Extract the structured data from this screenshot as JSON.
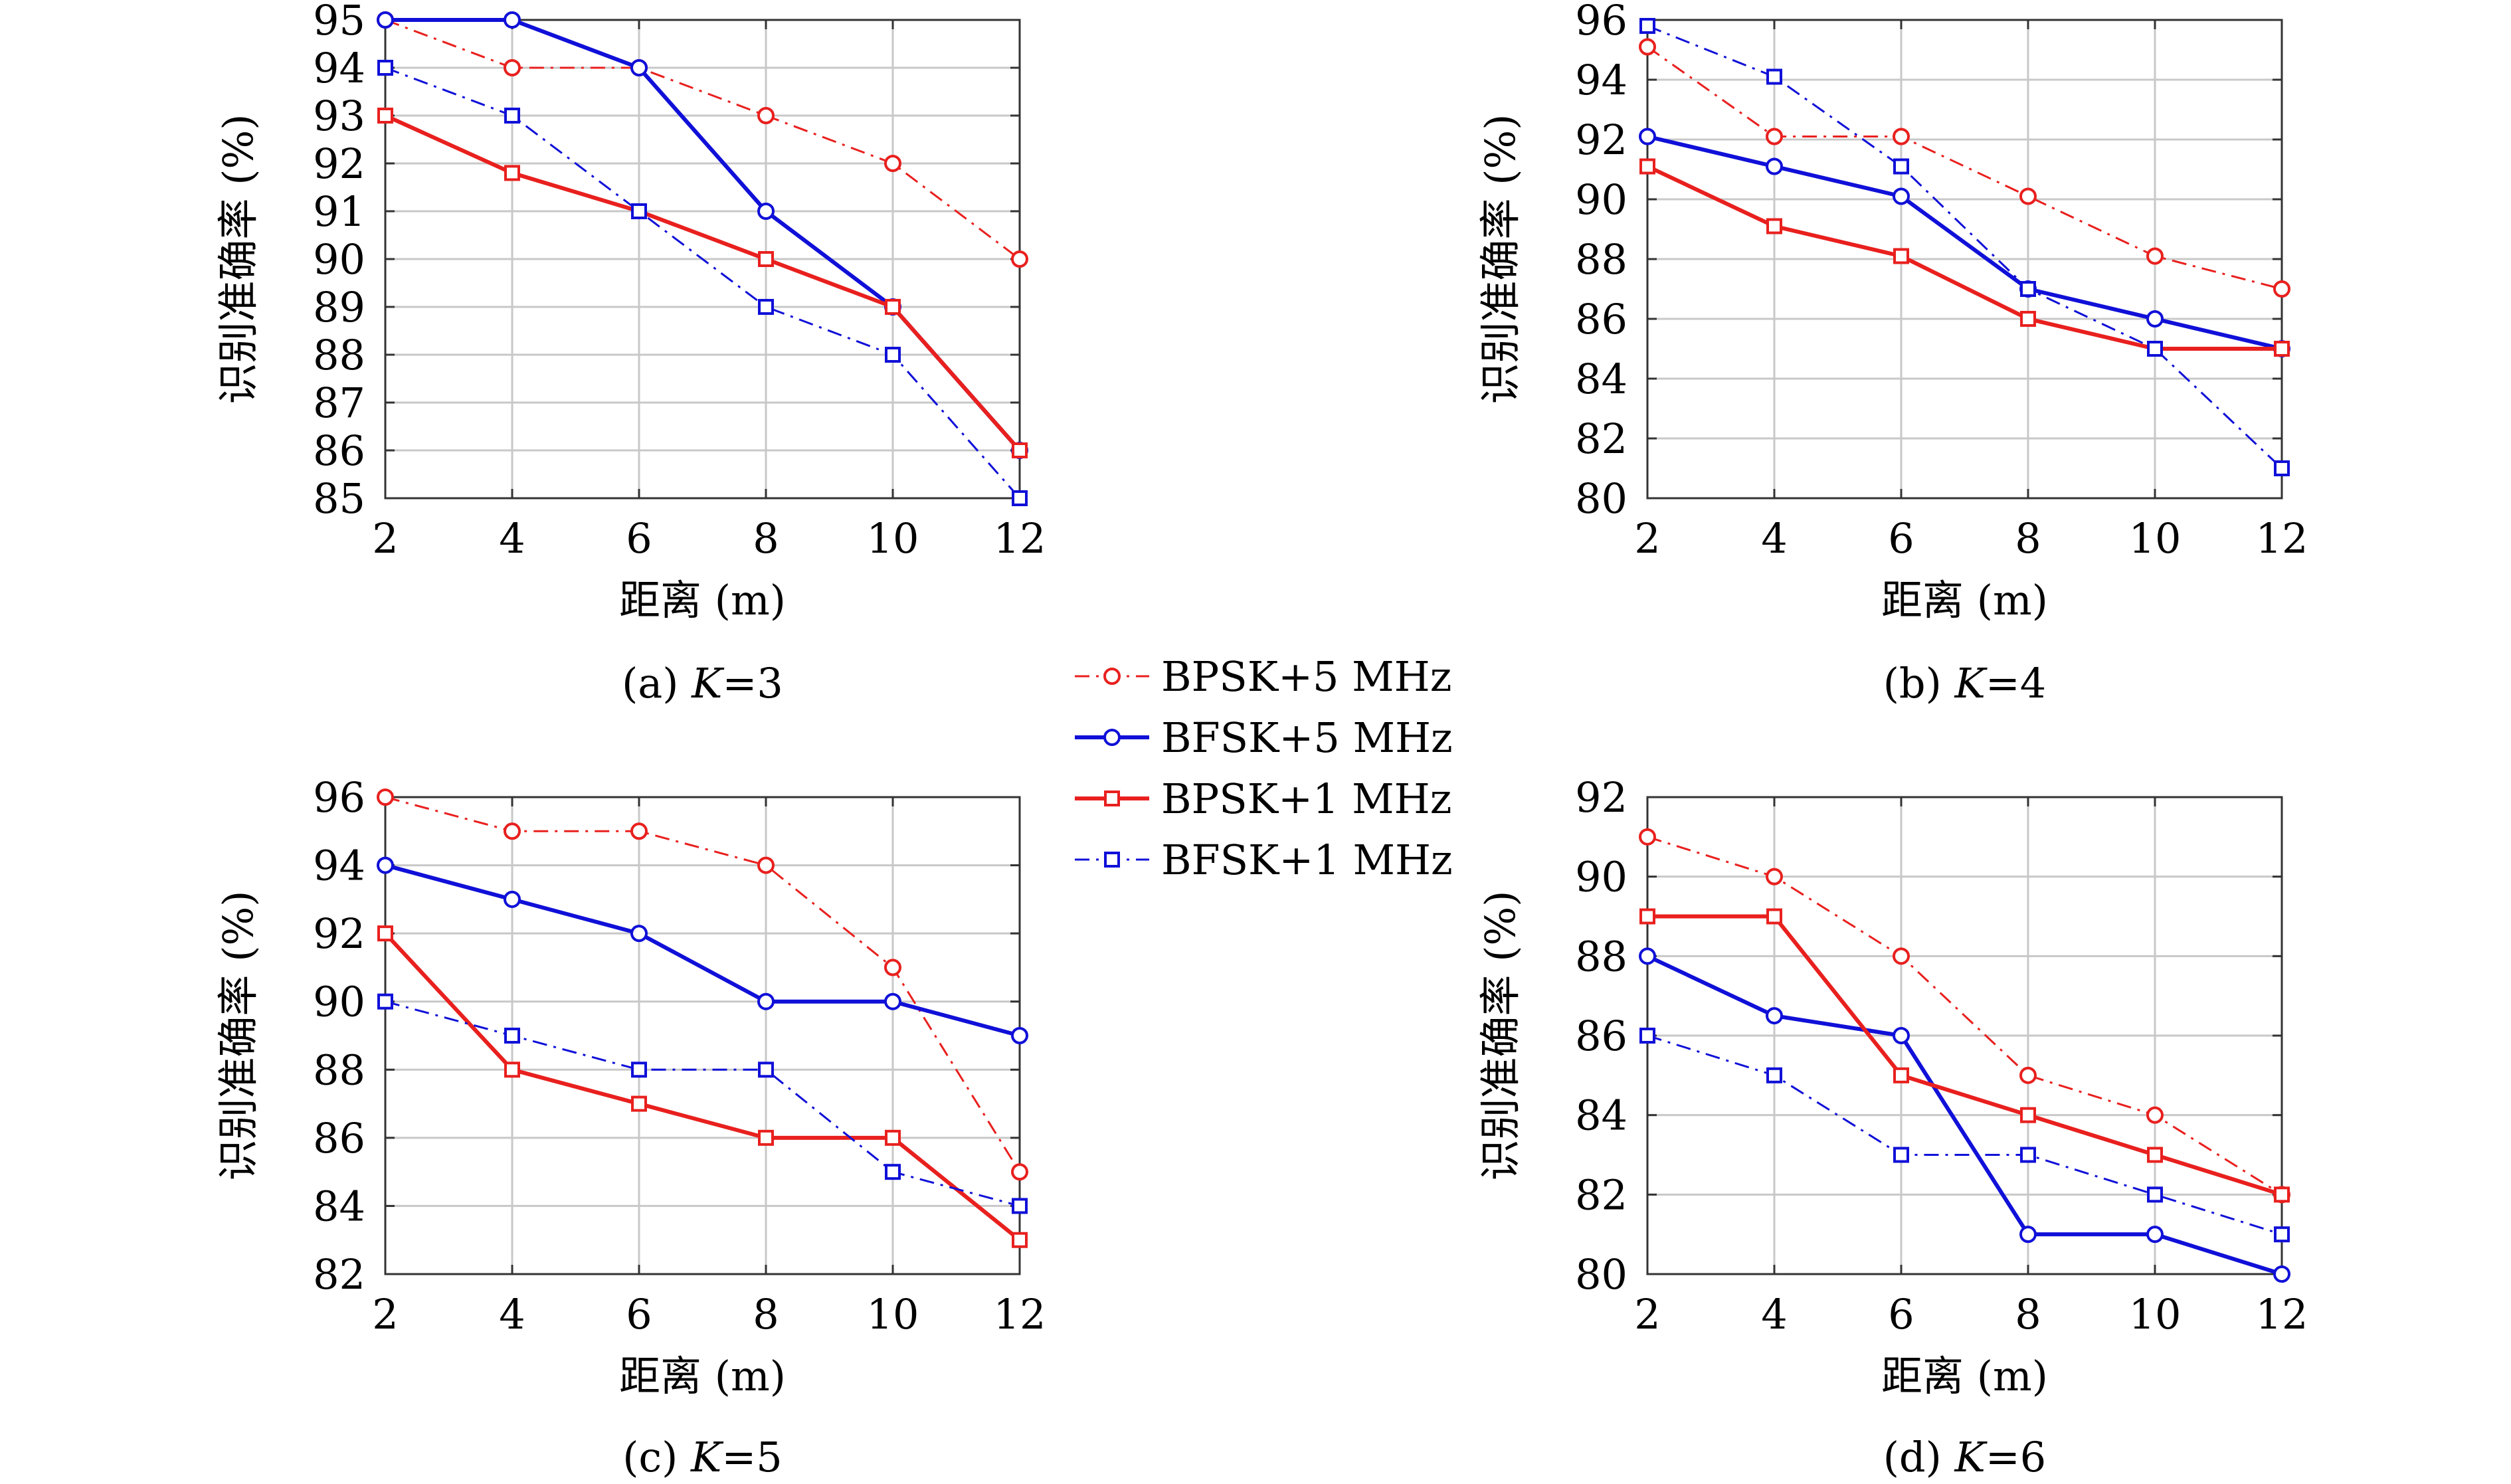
{
  "chart_data": [
    {
      "type": "line",
      "caption": "(a)",
      "k_label": "K",
      "k_value": "=3",
      "xlabel": "距离 (m)",
      "ylabel": "识别准确率 (%)",
      "x": [
        2,
        4,
        6,
        8,
        10,
        12
      ],
      "xlim": [
        2,
        12
      ],
      "ylim": [
        85,
        95
      ],
      "yticks": [
        85,
        86,
        87,
        88,
        89,
        90,
        91,
        92,
        93,
        94,
        95
      ],
      "grid": true,
      "series": [
        {
          "name": "BPSK+5 MHz",
          "values": [
            95,
            94,
            94,
            93,
            92,
            90
          ]
        },
        {
          "name": "BFSK+5 MHz",
          "values": [
            95,
            95,
            94,
            91,
            89,
            86
          ]
        },
        {
          "name": "BPSK+1 MHz",
          "values": [
            93,
            91.8,
            91,
            90,
            89,
            86
          ]
        },
        {
          "name": "BFSK+1 MHz",
          "values": [
            94,
            93,
            91,
            89,
            88,
            85
          ]
        }
      ]
    },
    {
      "type": "line",
      "caption": "(b)",
      "k_label": "K",
      "k_value": "=4",
      "xlabel": "距离 (m)",
      "ylabel": "识别准确率 (%)",
      "x": [
        2,
        4,
        6,
        8,
        10,
        12
      ],
      "xlim": [
        2,
        12
      ],
      "ylim": [
        80,
        96
      ],
      "yticks": [
        80,
        82,
        84,
        86,
        88,
        90,
        92,
        94,
        96
      ],
      "grid": true,
      "series": [
        {
          "name": "BPSK+5 MHz",
          "values": [
            95.1,
            92.1,
            92.1,
            90.1,
            88.1,
            87
          ]
        },
        {
          "name": "BFSK+5 MHz",
          "values": [
            92.1,
            91.1,
            90.1,
            87,
            86,
            85
          ]
        },
        {
          "name": "BPSK+1 MHz",
          "values": [
            91.1,
            89.1,
            88.1,
            86,
            85,
            85
          ]
        },
        {
          "name": "BFSK+1 MHz",
          "values": [
            95.8,
            94.1,
            91.1,
            87,
            85,
            81
          ]
        }
      ]
    },
    {
      "type": "line",
      "caption": "(c)",
      "k_label": "K",
      "k_value": "=5",
      "xlabel": "距离 (m)",
      "ylabel": "识别准确率 (%)",
      "x": [
        2,
        4,
        6,
        8,
        10,
        12
      ],
      "xlim": [
        2,
        12
      ],
      "ylim": [
        82,
        96
      ],
      "yticks": [
        82,
        84,
        86,
        88,
        90,
        92,
        94,
        96
      ],
      "grid": true,
      "series": [
        {
          "name": "BPSK+5 MHz",
          "values": [
            96,
            95,
            95,
            94,
            91,
            85
          ]
        },
        {
          "name": "BFSK+5 MHz",
          "values": [
            94,
            93,
            92,
            90,
            90,
            89
          ]
        },
        {
          "name": "BPSK+1 MHz",
          "values": [
            92,
            88,
            87,
            86,
            86,
            83
          ]
        },
        {
          "name": "BFSK+1 MHz",
          "values": [
            90,
            89,
            88,
            88,
            85,
            84
          ]
        }
      ]
    },
    {
      "type": "line",
      "caption": "(d)",
      "k_label": "K",
      "k_value": "=6",
      "xlabel": "距离 (m)",
      "ylabel": "识别准确率 (%)",
      "x": [
        2,
        4,
        6,
        8,
        10,
        12
      ],
      "xlim": [
        2,
        12
      ],
      "ylim": [
        80,
        92
      ],
      "yticks": [
        80,
        82,
        84,
        86,
        88,
        90,
        92
      ],
      "grid": true,
      "series": [
        {
          "name": "BPSK+5 MHz",
          "values": [
            91,
            90,
            88,
            85,
            84,
            82
          ]
        },
        {
          "name": "BFSK+5 MHz",
          "values": [
            88,
            86.5,
            86,
            81,
            81,
            80
          ]
        },
        {
          "name": "BPSK+1 MHz",
          "values": [
            89,
            89,
            85,
            84,
            83,
            82
          ]
        },
        {
          "name": "BFSK+1 MHz",
          "values": [
            86,
            85,
            83,
            83,
            82,
            81
          ]
        }
      ]
    }
  ],
  "legend": {
    "placement": "center",
    "entries": [
      {
        "label": "BPSK+5 MHz",
        "color": "#e8201e",
        "marker": "circle",
        "line": "dash-dot"
      },
      {
        "label": "BFSK+5 MHz",
        "color": "#1010d8",
        "marker": "circle",
        "line": "solid"
      },
      {
        "label": "BPSK+1 MHz",
        "color": "#e8201e",
        "marker": "square",
        "line": "solid"
      },
      {
        "label": "BFSK+1 MHz",
        "color": "#1010d8",
        "marker": "square",
        "line": "dash-dot"
      }
    ]
  },
  "xticks": [
    2,
    4,
    6,
    8,
    10,
    12
  ]
}
